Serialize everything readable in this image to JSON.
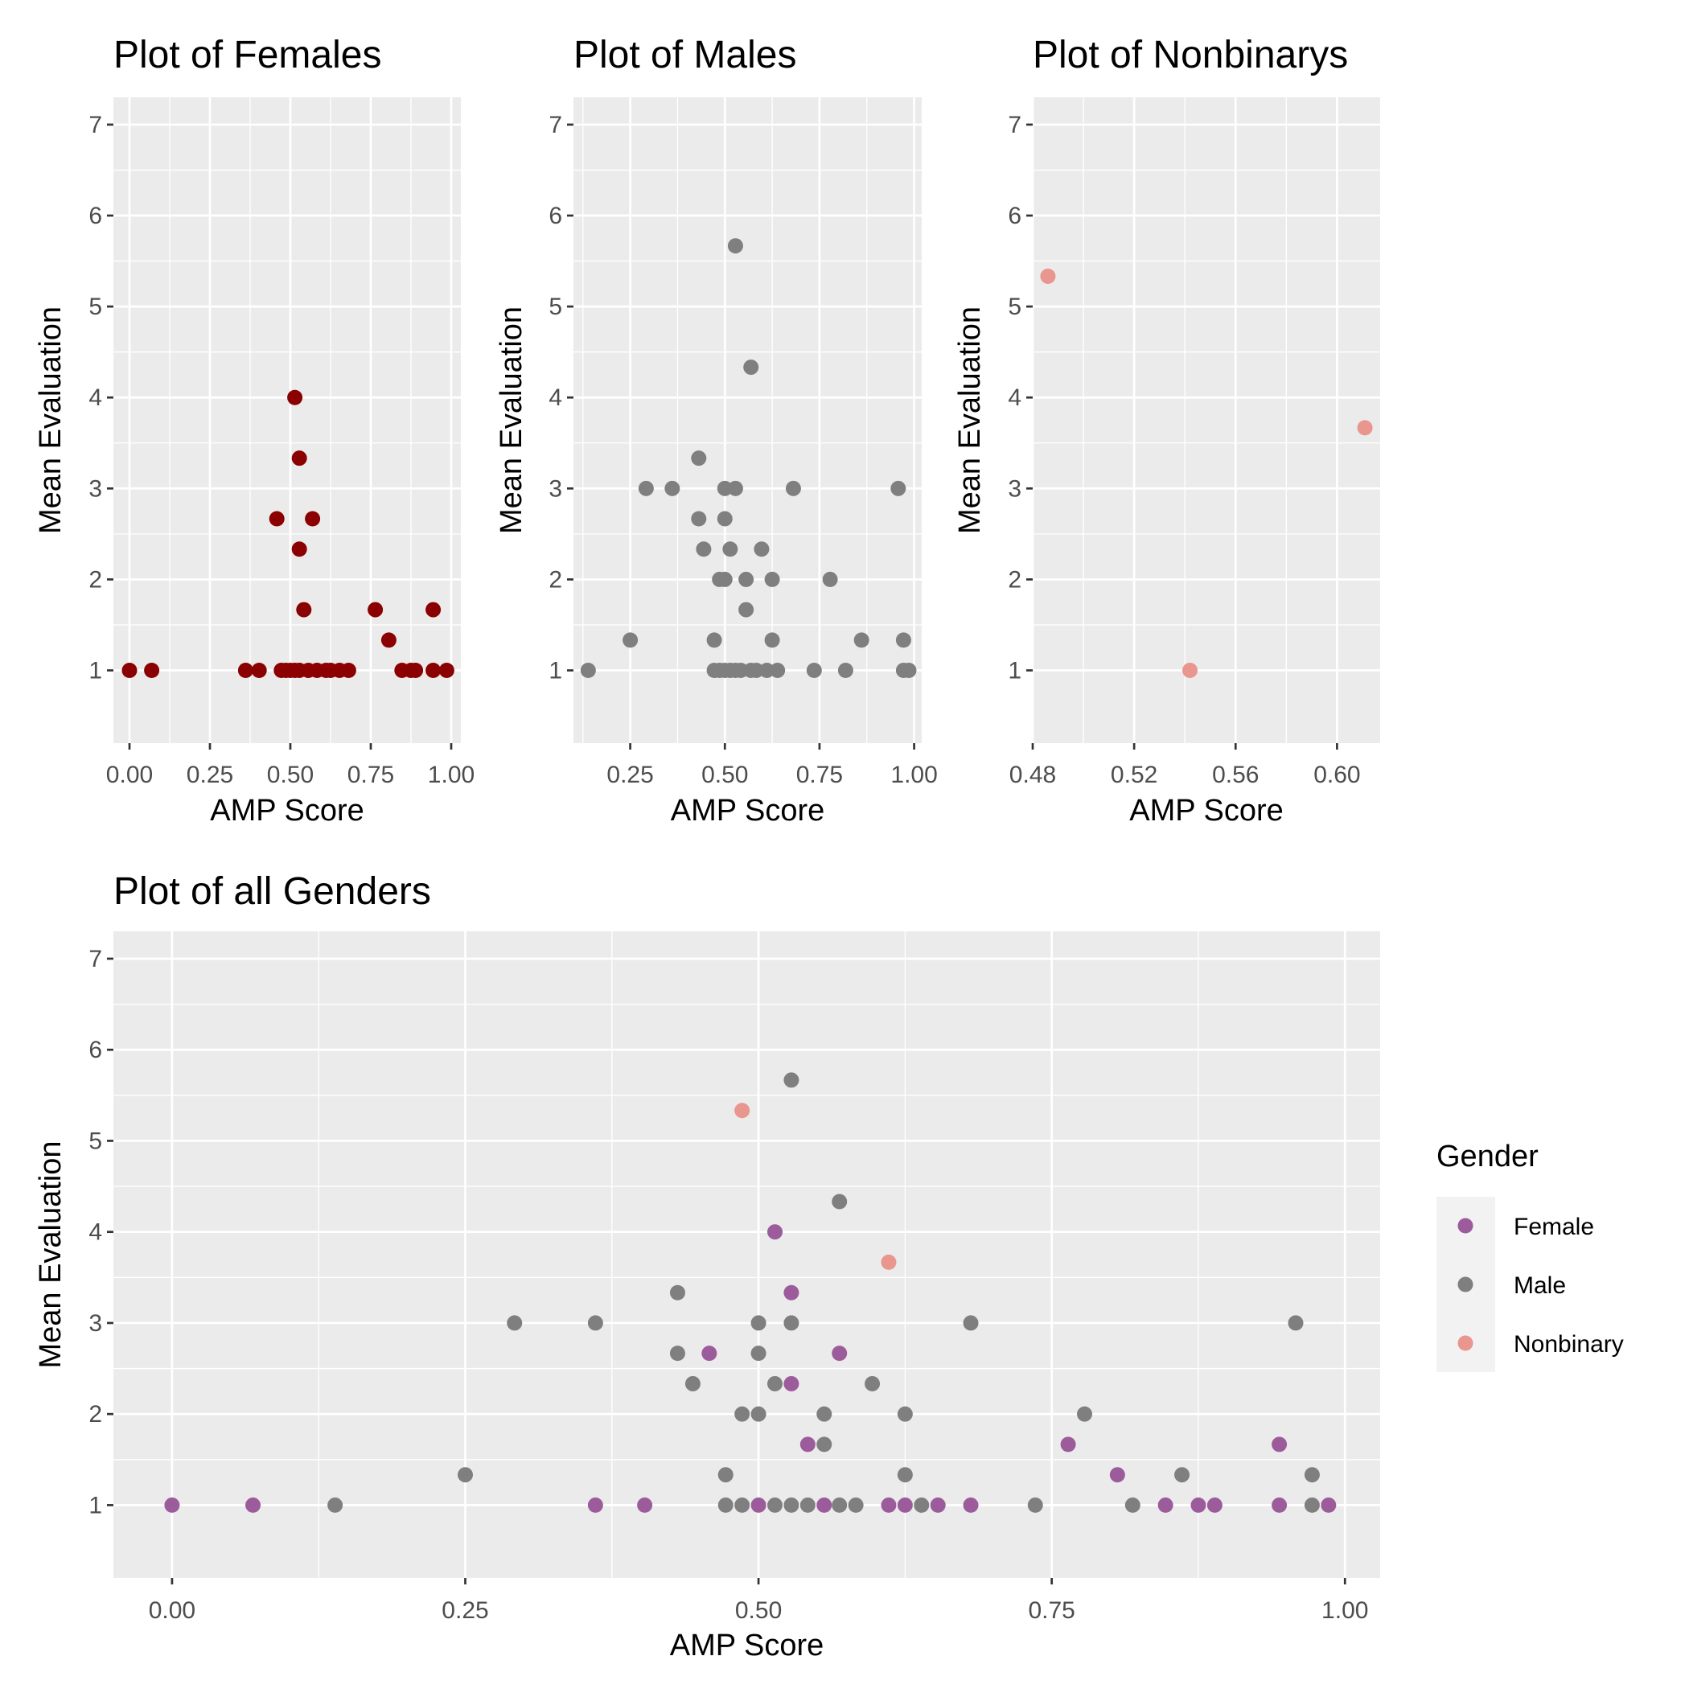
{
  "chart_data": [
    {
      "type": "scatter",
      "title": "Plot of Females",
      "xlabel": "AMP Score",
      "ylabel": "Mean Evaluation",
      "xlim": [
        -0.05,
        1.03
      ],
      "ylim": [
        0.2,
        7.3
      ],
      "xticks": [
        "0.00",
        "0.25",
        "0.50",
        "0.75",
        "1.00"
      ],
      "yticks": [
        "1",
        "2",
        "3",
        "4",
        "5",
        "6",
        "7"
      ],
      "grid": true,
      "color": "#8B0000",
      "points": [
        [
          0.0,
          1
        ],
        [
          0.069,
          1
        ],
        [
          0.361,
          1
        ],
        [
          0.403,
          1
        ],
        [
          0.458,
          2.667
        ],
        [
          0.472,
          1
        ],
        [
          0.486,
          1
        ],
        [
          0.5,
          1
        ],
        [
          0.514,
          4
        ],
        [
          0.514,
          1
        ],
        [
          0.528,
          3.333
        ],
        [
          0.528,
          2.333
        ],
        [
          0.528,
          1
        ],
        [
          0.542,
          1.667
        ],
        [
          0.556,
          1
        ],
        [
          0.569,
          2.667
        ],
        [
          0.583,
          1
        ],
        [
          0.611,
          1
        ],
        [
          0.625,
          1
        ],
        [
          0.653,
          1
        ],
        [
          0.681,
          1
        ],
        [
          0.764,
          1.667
        ],
        [
          0.806,
          1.333
        ],
        [
          0.847,
          1
        ],
        [
          0.875,
          1
        ],
        [
          0.889,
          1
        ],
        [
          0.944,
          1.667
        ],
        [
          0.944,
          1
        ],
        [
          0.986,
          1
        ]
      ]
    },
    {
      "type": "scatter",
      "title": "Plot of Males",
      "xlabel": "AMP Score",
      "ylabel": "Mean Evaluation",
      "xlim": [
        0.1,
        1.02
      ],
      "ylim": [
        0.2,
        7.3
      ],
      "xticks": [
        "0.25",
        "0.50",
        "0.75",
        "1.00"
      ],
      "yticks": [
        "1",
        "2",
        "3",
        "4",
        "5",
        "6",
        "7"
      ],
      "grid": true,
      "color": "#7f7f7f",
      "points": [
        [
          0.139,
          1
        ],
        [
          0.25,
          1.333
        ],
        [
          0.292,
          3
        ],
        [
          0.361,
          3
        ],
        [
          0.431,
          3.333
        ],
        [
          0.431,
          2.667
        ],
        [
          0.444,
          2.333
        ],
        [
          0.472,
          1.333
        ],
        [
          0.472,
          1
        ],
        [
          0.486,
          2
        ],
        [
          0.486,
          1
        ],
        [
          0.5,
          3
        ],
        [
          0.5,
          2.667
        ],
        [
          0.5,
          2
        ],
        [
          0.5,
          1
        ],
        [
          0.514,
          2.333
        ],
        [
          0.514,
          1
        ],
        [
          0.528,
          5.667
        ],
        [
          0.528,
          3
        ],
        [
          0.528,
          1
        ],
        [
          0.542,
          1
        ],
        [
          0.556,
          2
        ],
        [
          0.556,
          1.667
        ],
        [
          0.569,
          4.333
        ],
        [
          0.569,
          1
        ],
        [
          0.583,
          1
        ],
        [
          0.597,
          2.333
        ],
        [
          0.611,
          1
        ],
        [
          0.625,
          2
        ],
        [
          0.625,
          1.333
        ],
        [
          0.639,
          1
        ],
        [
          0.681,
          3
        ],
        [
          0.736,
          1
        ],
        [
          0.778,
          2
        ],
        [
          0.819,
          1
        ],
        [
          0.861,
          1.333
        ],
        [
          0.958,
          3
        ],
        [
          0.972,
          1.333
        ],
        [
          0.972,
          1
        ],
        [
          0.986,
          1
        ]
      ]
    },
    {
      "type": "scatter",
      "title": "Plot of Nonbinarys",
      "xlabel": "AMP Score",
      "ylabel": "Mean Evaluation",
      "xlim": [
        0.48,
        0.617
      ],
      "ylim": [
        0.2,
        7.3
      ],
      "xticks": [
        "0.48",
        "0.52",
        "0.56",
        "0.60"
      ],
      "yticks": [
        "1",
        "2",
        "3",
        "4",
        "5",
        "6",
        "7"
      ],
      "grid": true,
      "color": "#E8968E",
      "points": [
        [
          0.486,
          5.333
        ],
        [
          0.542,
          1
        ],
        [
          0.611,
          3.667
        ]
      ]
    },
    {
      "type": "scatter",
      "title": "Plot of all Genders",
      "xlabel": "AMP Score",
      "ylabel": "Mean Evaluation",
      "xlim": [
        -0.05,
        1.03
      ],
      "ylim": [
        0.2,
        7.3
      ],
      "xticks": [
        "0.00",
        "0.25",
        "0.50",
        "0.75",
        "1.00"
      ],
      "yticks": [
        "1",
        "2",
        "3",
        "4",
        "5",
        "6",
        "7"
      ],
      "grid": true,
      "legend": {
        "title": "Gender",
        "position": "right"
      },
      "series": [
        {
          "name": "Female",
          "color": "#9C5C9C",
          "points": [
            [
              0.0,
              1
            ],
            [
              0.069,
              1
            ],
            [
              0.361,
              1
            ],
            [
              0.403,
              1
            ],
            [
              0.458,
              2.667
            ],
            [
              0.5,
              1
            ],
            [
              0.514,
              4
            ],
            [
              0.528,
              3.333
            ],
            [
              0.528,
              2.333
            ],
            [
              0.542,
              1.667
            ],
            [
              0.556,
              1
            ],
            [
              0.569,
              2.667
            ],
            [
              0.611,
              1
            ],
            [
              0.625,
              1
            ],
            [
              0.653,
              1
            ],
            [
              0.681,
              1
            ],
            [
              0.764,
              1.667
            ],
            [
              0.806,
              1.333
            ],
            [
              0.847,
              1
            ],
            [
              0.875,
              1
            ],
            [
              0.889,
              1
            ],
            [
              0.944,
              1.667
            ],
            [
              0.944,
              1
            ],
            [
              0.986,
              1
            ]
          ]
        },
        {
          "name": "Male",
          "color": "#7f7f7f",
          "points": [
            [
              0.139,
              1
            ],
            [
              0.25,
              1.333
            ],
            [
              0.292,
              3
            ],
            [
              0.361,
              3
            ],
            [
              0.431,
              3.333
            ],
            [
              0.431,
              2.667
            ],
            [
              0.444,
              2.333
            ],
            [
              0.472,
              1.333
            ],
            [
              0.472,
              1
            ],
            [
              0.486,
              2
            ],
            [
              0.486,
              1
            ],
            [
              0.5,
              3
            ],
            [
              0.5,
              2.667
            ],
            [
              0.5,
              2
            ],
            [
              0.514,
              2.333
            ],
            [
              0.514,
              1
            ],
            [
              0.528,
              5.667
            ],
            [
              0.528,
              3
            ],
            [
              0.528,
              1
            ],
            [
              0.542,
              1
            ],
            [
              0.556,
              2
            ],
            [
              0.556,
              1.667
            ],
            [
              0.569,
              4.333
            ],
            [
              0.569,
              1
            ],
            [
              0.583,
              1
            ],
            [
              0.597,
              2.333
            ],
            [
              0.625,
              2
            ],
            [
              0.625,
              1.333
            ],
            [
              0.639,
              1
            ],
            [
              0.681,
              3
            ],
            [
              0.736,
              1
            ],
            [
              0.778,
              2
            ],
            [
              0.819,
              1
            ],
            [
              0.861,
              1.333
            ],
            [
              0.958,
              3
            ],
            [
              0.972,
              1.333
            ],
            [
              0.972,
              1
            ]
          ]
        },
        {
          "name": "Nonbinary",
          "color": "#E8968E",
          "points": [
            [
              0.486,
              5.333
            ],
            [
              0.611,
              3.667
            ]
          ]
        }
      ]
    }
  ]
}
